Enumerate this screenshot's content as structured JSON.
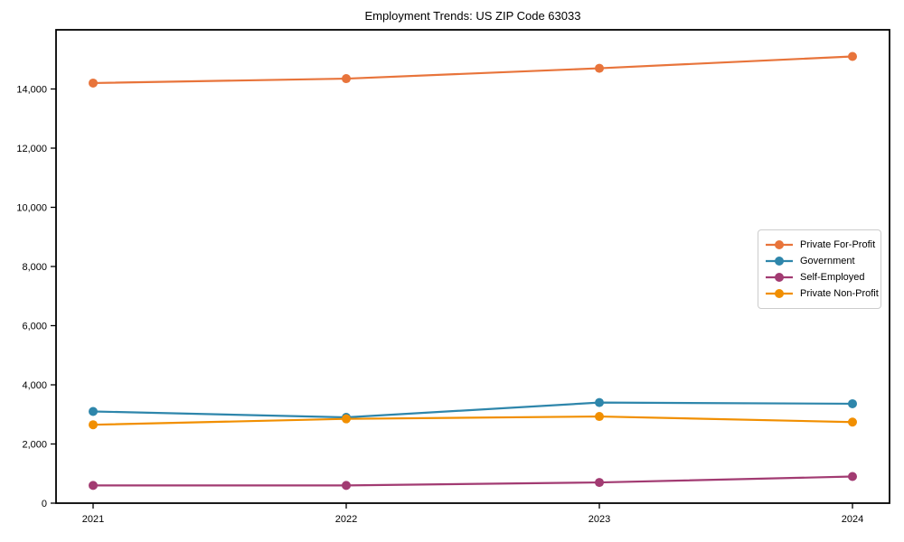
{
  "title": "Employment Trends: US ZIP Code 63033",
  "chart_data": {
    "type": "line",
    "title": "Employment Trends: US ZIP Code 63033",
    "xlabel": "",
    "ylabel": "",
    "x": [
      2021,
      2022,
      2023,
      2024
    ],
    "x_labels": [
      "2021",
      "2022",
      "2023",
      "2024"
    ],
    "series": [
      {
        "name": "Private For-Profit",
        "color": "#E8743B",
        "values": [
          14200,
          14350,
          14700,
          15100
        ]
      },
      {
        "name": "Government",
        "color": "#2E86AB",
        "values": [
          3100,
          2900,
          3400,
          3360
        ]
      },
      {
        "name": "Self-Employed",
        "color": "#A23B72",
        "values": [
          600,
          600,
          700,
          900
        ]
      },
      {
        "name": "Private Non-Profit",
        "color": "#F18F01",
        "values": [
          2650,
          2850,
          2930,
          2740
        ]
      }
    ],
    "ylim": [
      0,
      16000
    ],
    "yticks": [
      0,
      2000,
      4000,
      6000,
      8000,
      10000,
      12000,
      14000
    ],
    "ytick_labels": [
      "0",
      "2,000",
      "4,000",
      "6,000",
      "8,000",
      "10,000",
      "12,000",
      "14,000"
    ],
    "grid": false,
    "legend_position": "center right",
    "marker": "circle",
    "frame_color": "#000000"
  }
}
